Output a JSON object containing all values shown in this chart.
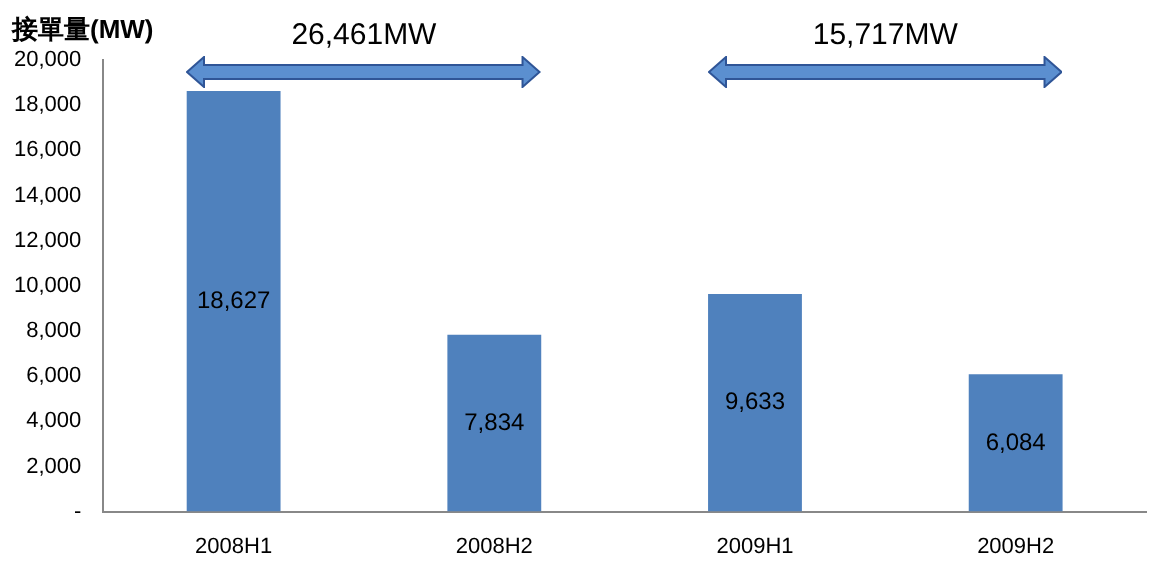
{
  "chart_data": {
    "type": "bar",
    "title": "接單量(MW)",
    "categories": [
      "2008H1",
      "2008H2",
      "2009H1",
      "2009H2"
    ],
    "values": [
      18627,
      7834,
      9633,
      6084
    ],
    "color": "#4f81bd",
    "ylim": [
      0,
      20000
    ],
    "yticks": [
      {
        "value": 0,
        "label": "-"
      },
      {
        "value": 2000,
        "label": "2,000"
      },
      {
        "value": 4000,
        "label": "4,000"
      },
      {
        "value": 6000,
        "label": "6,000"
      },
      {
        "value": 8000,
        "label": "8,000"
      },
      {
        "value": 10000,
        "label": "10,000"
      },
      {
        "value": 12000,
        "label": "12,000"
      },
      {
        "value": 14000,
        "label": "14,000"
      },
      {
        "value": 16000,
        "label": "16,000"
      },
      {
        "value": 18000,
        "label": "18,000"
      },
      {
        "value": 20000,
        "label": "20,000"
      }
    ],
    "grid": false,
    "legend": false,
    "value_labels": [
      "18,627",
      "7,834",
      "9,633",
      "6,084"
    ],
    "annotations": [
      "26,461MW",
      "15,717MW"
    ]
  }
}
